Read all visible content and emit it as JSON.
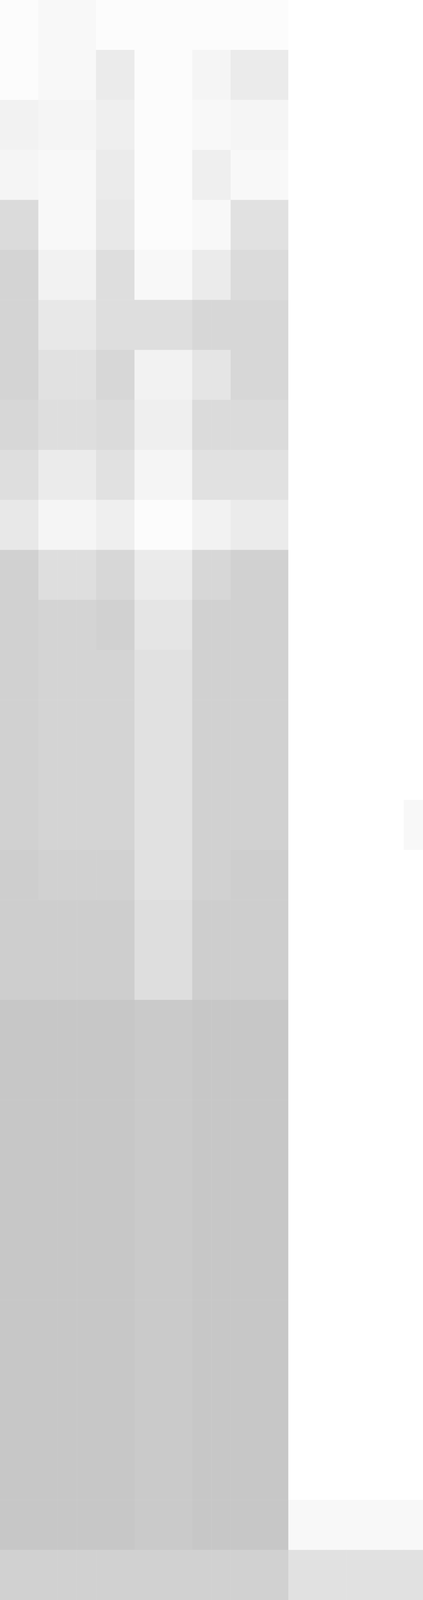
{
  "chart_data": {
    "type": "heatmap",
    "tick_labels": false,
    "color": "#bdbdbd",
    "color_range": [
      0,
      1
    ],
    "cells": [
      [
        0.05,
        0.05,
        0.1,
        0.1,
        0.1,
        0.05,
        0.05,
        0.05,
        0.05,
        0.05,
        0.05,
        0.05,
        0.05,
        0.05,
        0.05,
        0,
        0,
        0,
        0,
        0,
        0,
        0
      ],
      [
        0.05,
        0.05,
        0.1,
        0.1,
        0.1,
        0.3,
        0.3,
        0.05,
        0.05,
        0.05,
        0.15,
        0.15,
        0.3,
        0.3,
        0.3,
        0,
        0,
        0,
        0,
        0,
        0,
        0
      ],
      [
        0.2,
        0.2,
        0.15,
        0.15,
        0.15,
        0.25,
        0.25,
        0.05,
        0.05,
        0.05,
        0.1,
        0.1,
        0.15,
        0.15,
        0.15,
        0,
        0,
        0,
        0,
        0,
        0,
        0
      ],
      [
        0.15,
        0.15,
        0.1,
        0.1,
        0.1,
        0.3,
        0.3,
        0.05,
        0.05,
        0.05,
        0.25,
        0.25,
        0.1,
        0.1,
        0.1,
        0,
        0,
        0,
        0,
        0,
        0,
        0
      ],
      [
        0.55,
        0.55,
        0.1,
        0.1,
        0.1,
        0.35,
        0.35,
        0.05,
        0.05,
        0.05,
        0.1,
        0.1,
        0.45,
        0.45,
        0.45,
        0,
        0,
        0,
        0,
        0,
        0,
        0
      ],
      [
        0.65,
        0.65,
        0.2,
        0.2,
        0.2,
        0.5,
        0.5,
        0.1,
        0.1,
        0.1,
        0.3,
        0.3,
        0.55,
        0.55,
        0.55,
        0,
        0,
        0,
        0,
        0,
        0,
        0
      ],
      [
        0.65,
        0.65,
        0.35,
        0.35,
        0.35,
        0.5,
        0.5,
        0.5,
        0.5,
        0.5,
        0.6,
        0.6,
        0.6,
        0.6,
        0.6,
        0,
        0,
        0,
        0,
        0,
        0,
        0
      ],
      [
        0.65,
        0.65,
        0.45,
        0.45,
        0.45,
        0.6,
        0.6,
        0.2,
        0.2,
        0.2,
        0.4,
        0.4,
        0.6,
        0.6,
        0.6,
        0,
        0,
        0,
        0,
        0,
        0,
        0
      ],
      [
        0.6,
        0.6,
        0.5,
        0.5,
        0.5,
        0.55,
        0.55,
        0.25,
        0.25,
        0.25,
        0.55,
        0.55,
        0.55,
        0.55,
        0.55,
        0,
        0,
        0,
        0,
        0,
        0,
        0
      ],
      [
        0.5,
        0.5,
        0.3,
        0.3,
        0.3,
        0.45,
        0.45,
        0.15,
        0.15,
        0.15,
        0.45,
        0.45,
        0.45,
        0.45,
        0.45,
        0,
        0,
        0,
        0,
        0,
        0,
        0
      ],
      [
        0.35,
        0.35,
        0.15,
        0.15,
        0.15,
        0.25,
        0.25,
        0.05,
        0.05,
        0.05,
        0.2,
        0.2,
        0.3,
        0.3,
        0.3,
        0,
        0,
        0,
        0,
        0,
        0,
        0
      ],
      [
        0.7,
        0.7,
        0.5,
        0.5,
        0.5,
        0.6,
        0.6,
        0.3,
        0.3,
        0.3,
        0.6,
        0.6,
        0.7,
        0.7,
        0.7,
        0,
        0,
        0,
        0,
        0,
        0,
        0
      ],
      [
        0.7,
        0.7,
        0.65,
        0.65,
        0.65,
        0.7,
        0.7,
        0.4,
        0.4,
        0.4,
        0.7,
        0.7,
        0.7,
        0.7,
        0.7,
        0,
        0,
        0,
        0,
        0,
        0,
        0
      ],
      [
        0.7,
        0.7,
        0.65,
        0.65,
        0.65,
        0.65,
        0.65,
        0.45,
        0.45,
        0.45,
        0.7,
        0.7,
        0.7,
        0.7,
        0.7,
        0,
        0,
        0,
        0,
        0,
        0,
        0
      ],
      [
        0.7,
        0.7,
        0.65,
        0.65,
        0.65,
        0.65,
        0.65,
        0.45,
        0.45,
        0.45,
        0.7,
        0.7,
        0.7,
        0.7,
        0.7,
        0,
        0,
        0,
        0,
        0,
        0,
        0
      ],
      [
        0.7,
        0.7,
        0.65,
        0.65,
        0.65,
        0.65,
        0.65,
        0.45,
        0.45,
        0.45,
        0.7,
        0.7,
        0.7,
        0.7,
        0.7,
        0,
        0,
        0,
        0,
        0,
        0,
        0
      ],
      [
        0.7,
        0.7,
        0.65,
        0.65,
        0.65,
        0.65,
        0.65,
        0.45,
        0.45,
        0.45,
        0.7,
        0.7,
        0.7,
        0.7,
        0.7,
        0,
        0,
        0,
        0,
        0,
        0,
        0.1
      ],
      [
        0.75,
        0.75,
        0.7,
        0.7,
        0.7,
        0.7,
        0.7,
        0.45,
        0.45,
        0.45,
        0.7,
        0.7,
        0.75,
        0.75,
        0.75,
        0,
        0,
        0,
        0,
        0,
        0,
        0
      ],
      [
        0.75,
        0.75,
        0.75,
        0.75,
        0.75,
        0.75,
        0.75,
        0.5,
        0.5,
        0.5,
        0.75,
        0.75,
        0.75,
        0.75,
        0.75,
        0,
        0,
        0,
        0,
        0,
        0,
        0
      ],
      [
        0.75,
        0.75,
        0.75,
        0.75,
        0.75,
        0.75,
        0.75,
        0.5,
        0.5,
        0.5,
        0.75,
        0.75,
        0.75,
        0.75,
        0.75,
        0,
        0,
        0,
        0,
        0,
        0,
        0
      ],
      [
        0.85,
        0.85,
        0.85,
        0.85,
        0.85,
        0.85,
        0.85,
        0.8,
        0.8,
        0.8,
        0.85,
        0.85,
        0.85,
        0.85,
        0.85,
        0,
        0,
        0,
        0,
        0,
        0,
        0
      ],
      [
        0.85,
        0.85,
        0.85,
        0.85,
        0.85,
        0.85,
        0.85,
        0.8,
        0.8,
        0.8,
        0.85,
        0.85,
        0.85,
        0.85,
        0.85,
        0,
        0,
        0,
        0,
        0,
        0,
        0
      ],
      [
        0.85,
        0.85,
        0.85,
        0.85,
        0.85,
        0.85,
        0.85,
        0.8,
        0.8,
        0.8,
        0.85,
        0.85,
        0.85,
        0.85,
        0.85,
        0,
        0,
        0,
        0,
        0,
        0,
        0
      ],
      [
        0.85,
        0.85,
        0.85,
        0.85,
        0.85,
        0.85,
        0.85,
        0.8,
        0.8,
        0.8,
        0.85,
        0.85,
        0.85,
        0.85,
        0.85,
        0,
        0,
        0,
        0,
        0,
        0,
        0
      ],
      [
        0.85,
        0.85,
        0.85,
        0.85,
        0.85,
        0.85,
        0.85,
        0.8,
        0.8,
        0.8,
        0.85,
        0.85,
        0.85,
        0.85,
        0.85,
        0,
        0,
        0,
        0,
        0,
        0,
        0
      ],
      [
        0.85,
        0.85,
        0.85,
        0.85,
        0.85,
        0.85,
        0.85,
        0.8,
        0.8,
        0.8,
        0.85,
        0.85,
        0.85,
        0.85,
        0.85,
        0,
        0,
        0,
        0,
        0,
        0,
        0
      ],
      [
        0.85,
        0.85,
        0.85,
        0.85,
        0.85,
        0.85,
        0.85,
        0.8,
        0.8,
        0.8,
        0.85,
        0.85,
        0.85,
        0.85,
        0.85,
        0,
        0,
        0,
        0,
        0,
        0,
        0
      ],
      [
        0.85,
        0.85,
        0.85,
        0.85,
        0.85,
        0.85,
        0.85,
        0.8,
        0.8,
        0.8,
        0.85,
        0.85,
        0.85,
        0.85,
        0.85,
        0,
        0,
        0,
        0,
        0,
        0,
        0
      ],
      [
        0.85,
        0.85,
        0.85,
        0.85,
        0.85,
        0.85,
        0.85,
        0.8,
        0.8,
        0.8,
        0.85,
        0.85,
        0.85,
        0.85,
        0.85,
        0,
        0,
        0,
        0,
        0,
        0,
        0
      ],
      [
        0.85,
        0.85,
        0.85,
        0.85,
        0.85,
        0.85,
        0.85,
        0.8,
        0.8,
        0.8,
        0.85,
        0.85,
        0.85,
        0.85,
        0.85,
        0,
        0,
        0,
        0,
        0,
        0,
        0
      ],
      [
        0.85,
        0.85,
        0.85,
        0.85,
        0.85,
        0.85,
        0.85,
        0.8,
        0.8,
        0.8,
        0.85,
        0.85,
        0.85,
        0.85,
        0.85,
        0.1,
        0.1,
        0.1,
        0.1,
        0.1,
        0.1,
        0.1
      ],
      [
        0.7,
        0.7,
        0.7,
        0.7,
        0.7,
        0.7,
        0.7,
        0.7,
        0.7,
        0.7,
        0.7,
        0.7,
        0.7,
        0.7,
        0.7,
        0.45,
        0.45,
        0.45,
        0.45,
        0.45,
        0.45,
        0.45
      ]
    ]
  }
}
